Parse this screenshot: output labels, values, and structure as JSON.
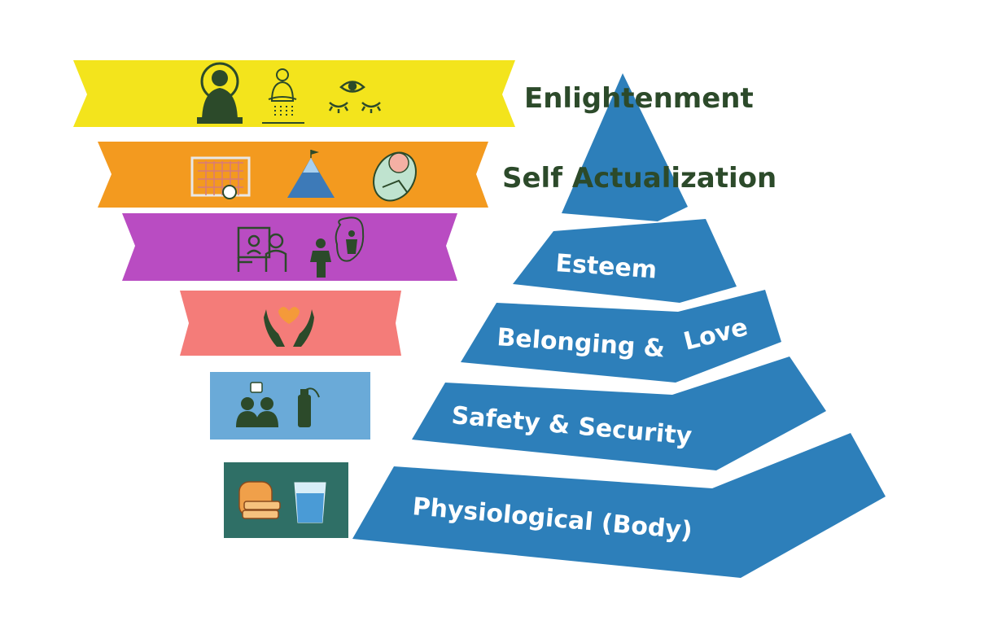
{
  "colors": {
    "pyramid": "#2d7fba",
    "band_enlightenment": "#f3e41c",
    "band_self_actualization": "#f39a1f",
    "band_esteem": "#b94cc2",
    "band_belonging": "#f47c79",
    "band_safety": "#6aaad8",
    "band_physiological": "#2f6f66",
    "side_text": "#2c4a2a",
    "icon_dark": "#2c4a2a"
  },
  "levels": {
    "enlightenment": "Enlightenment",
    "self_actualization": "Self Actualization",
    "esteem": "Esteem",
    "belonging_1": "Belonging &",
    "belonging_2": "Love",
    "safety": "Safety & Security",
    "physiological": "Physiological (Body)"
  },
  "icons": {
    "enlightenment": [
      "buddha-icon",
      "meditation-icon",
      "closed-eyes-icon"
    ],
    "self_actualization": [
      "goal-icon",
      "mountain-icon",
      "baby-icon"
    ],
    "esteem": [
      "teacher-icon",
      "confident-person-icon"
    ],
    "belonging": [
      "caring-hands-icon"
    ],
    "safety": [
      "people-icon",
      "fire-extinguisher-icon"
    ],
    "physiological": [
      "bread-icon",
      "water-glass-icon"
    ]
  }
}
